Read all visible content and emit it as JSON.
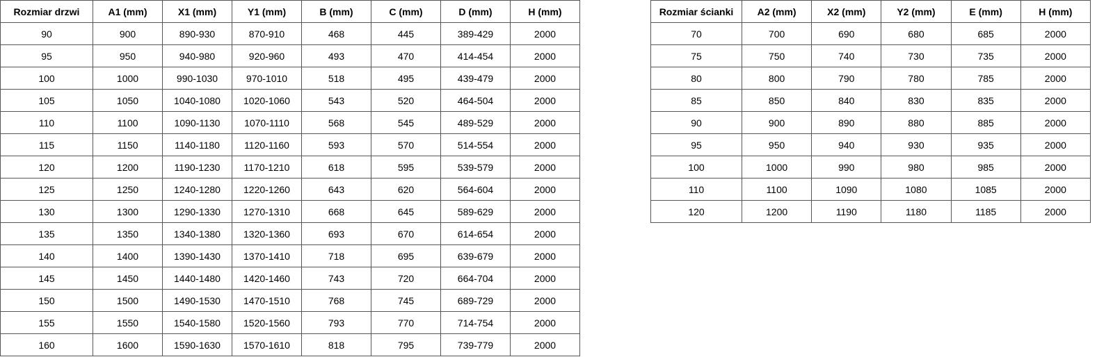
{
  "door_table": {
    "headers": [
      "Rozmiar drzwi",
      "A1 (mm)",
      "X1 (mm)",
      "Y1 (mm)",
      "B (mm)",
      "C (mm)",
      "D (mm)",
      "H (mm)"
    ],
    "rows": [
      [
        "90",
        "900",
        "890-930",
        "870-910",
        "468",
        "445",
        "389-429",
        "2000"
      ],
      [
        "95",
        "950",
        "940-980",
        "920-960",
        "493",
        "470",
        "414-454",
        "2000"
      ],
      [
        "100",
        "1000",
        "990-1030",
        "970-1010",
        "518",
        "495",
        "439-479",
        "2000"
      ],
      [
        "105",
        "1050",
        "1040-1080",
        "1020-1060",
        "543",
        "520",
        "464-504",
        "2000"
      ],
      [
        "110",
        "1100",
        "1090-1130",
        "1070-1110",
        "568",
        "545",
        "489-529",
        "2000"
      ],
      [
        "115",
        "1150",
        "1140-1180",
        "1120-1160",
        "593",
        "570",
        "514-554",
        "2000"
      ],
      [
        "120",
        "1200",
        "1190-1230",
        "1170-1210",
        "618",
        "595",
        "539-579",
        "2000"
      ],
      [
        "125",
        "1250",
        "1240-1280",
        "1220-1260",
        "643",
        "620",
        "564-604",
        "2000"
      ],
      [
        "130",
        "1300",
        "1290-1330",
        "1270-1310",
        "668",
        "645",
        "589-629",
        "2000"
      ],
      [
        "135",
        "1350",
        "1340-1380",
        "1320-1360",
        "693",
        "670",
        "614-654",
        "2000"
      ],
      [
        "140",
        "1400",
        "1390-1430",
        "1370-1410",
        "718",
        "695",
        "639-679",
        "2000"
      ],
      [
        "145",
        "1450",
        "1440-1480",
        "1420-1460",
        "743",
        "720",
        "664-704",
        "2000"
      ],
      [
        "150",
        "1500",
        "1490-1530",
        "1470-1510",
        "768",
        "745",
        "689-729",
        "2000"
      ],
      [
        "155",
        "1550",
        "1540-1580",
        "1520-1560",
        "793",
        "770",
        "714-754",
        "2000"
      ],
      [
        "160",
        "1600",
        "1590-1630",
        "1570-1610",
        "818",
        "795",
        "739-779",
        "2000"
      ]
    ]
  },
  "wall_table": {
    "headers": [
      "Rozmiar ścianki",
      "A2 (mm)",
      "X2 (mm)",
      "Y2 (mm)",
      "E (mm)",
      "H (mm)"
    ],
    "rows": [
      [
        "70",
        "700",
        "690",
        "680",
        "685",
        "2000"
      ],
      [
        "75",
        "750",
        "740",
        "730",
        "735",
        "2000"
      ],
      [
        "80",
        "800",
        "790",
        "780",
        "785",
        "2000"
      ],
      [
        "85",
        "850",
        "840",
        "830",
        "835",
        "2000"
      ],
      [
        "90",
        "900",
        "890",
        "880",
        "885",
        "2000"
      ],
      [
        "95",
        "950",
        "940",
        "930",
        "935",
        "2000"
      ],
      [
        "100",
        "1000",
        "990",
        "980",
        "985",
        "2000"
      ],
      [
        "110",
        "1100",
        "1090",
        "1080",
        "1085",
        "2000"
      ],
      [
        "120",
        "1200",
        "1190",
        "1180",
        "1185",
        "2000"
      ]
    ]
  }
}
